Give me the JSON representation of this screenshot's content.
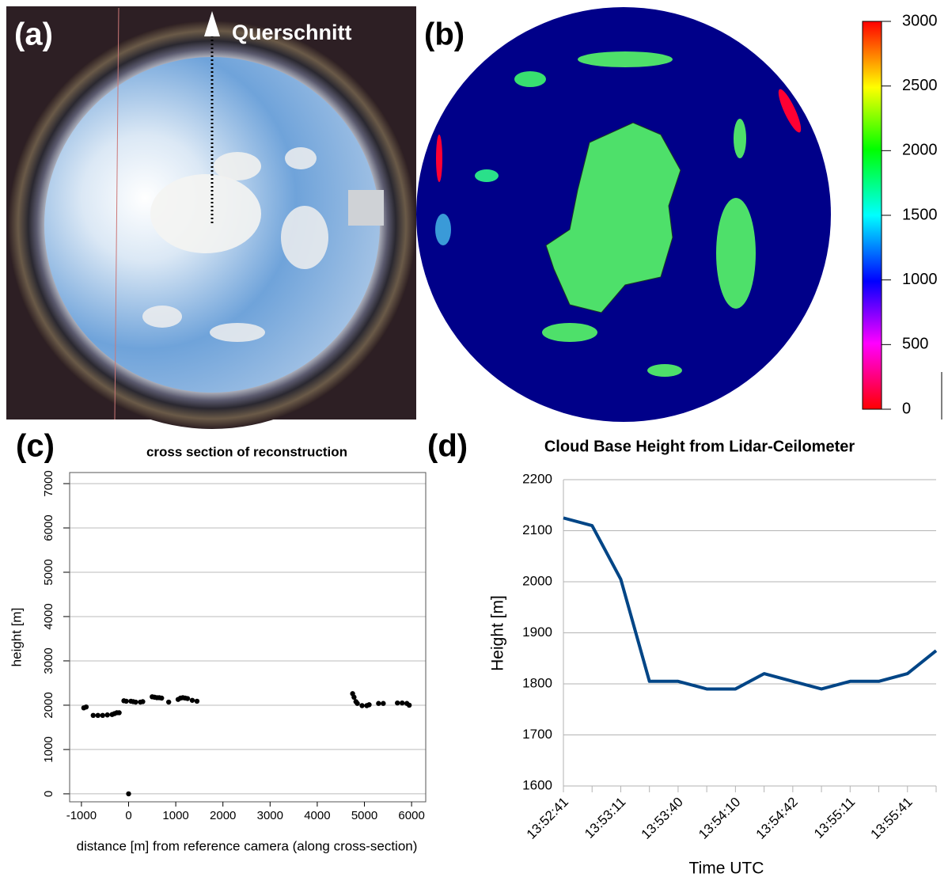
{
  "panels": [
    {
      "label": "(a)",
      "annotation": "Querschnitt"
    },
    {
      "label": "(b)",
      "colorbar": {
        "lim": [
          0,
          3000
        ],
        "ticks": [
          0,
          500,
          1000,
          1500,
          2000,
          2500,
          3000
        ]
      }
    }
  ],
  "chart_data": [
    {
      "type": "scatter",
      "panel_label": "(c)",
      "title": "cross section of reconstruction",
      "x_label": "distance [m] from reference camera (along cross-section)",
      "y_label": "height [m]",
      "color": "#000000",
      "grid": true,
      "xlim": [
        -1250,
        6300
      ],
      "xticks": [
        -1000,
        0,
        1000,
        2000,
        3000,
        4000,
        5000,
        6000
      ],
      "ylim": [
        -180,
        7250
      ],
      "yticks": [
        0,
        1000,
        2000,
        3000,
        4000,
        5000,
        6000,
        7000
      ],
      "x": [
        -950,
        -900,
        -750,
        -650,
        -550,
        -450,
        -350,
        -300,
        -250,
        -200,
        -100,
        -50,
        50,
        100,
        150,
        250,
        300,
        500,
        550,
        600,
        650,
        700,
        850,
        1050,
        1100,
        1150,
        1200,
        1250,
        1350,
        1450,
        0,
        4750,
        4780,
        4820,
        4850,
        4950,
        5050,
        5100,
        5300,
        5400,
        5700,
        5800,
        5900,
        5950
      ],
      "values": [
        1940,
        1960,
        1770,
        1770,
        1770,
        1780,
        1790,
        1810,
        1830,
        1830,
        2100,
        2090,
        2090,
        2080,
        2070,
        2070,
        2080,
        2190,
        2180,
        2170,
        2170,
        2160,
        2070,
        2130,
        2160,
        2170,
        2160,
        2150,
        2110,
        2090,
        0,
        2260,
        2180,
        2080,
        2040,
        1990,
        1990,
        2010,
        2040,
        2040,
        2050,
        2050,
        2040,
        2000
      ]
    },
    {
      "type": "line",
      "panel_label": "(d)",
      "title": "Cloud Base Height from Lidar-Ceilometer",
      "x_label": "Time UTC",
      "y_label": "Height [m]",
      "color": "#004586",
      "grid": true,
      "categories": [
        "13:52:41",
        null,
        "13:53:11",
        null,
        "13:53:40",
        null,
        "13:54:10",
        null,
        "13:54:42",
        null,
        "13:55:11",
        null,
        "13:55:41",
        null
      ],
      "values": [
        2125,
        2110,
        2005,
        1805,
        1805,
        1790,
        1790,
        1820,
        1805,
        1790,
        1805,
        1805,
        1820,
        1865
      ],
      "ylim": [
        1600,
        2200
      ],
      "yticks": [
        1600,
        1700,
        1800,
        1900,
        2000,
        2100,
        2200
      ]
    }
  ]
}
